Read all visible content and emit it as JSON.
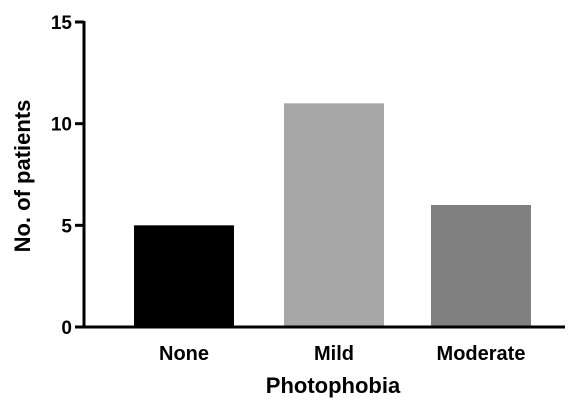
{
  "chart_data": {
    "type": "bar",
    "categories": [
      "None",
      "Mild",
      "Moderate"
    ],
    "values": [
      5,
      11,
      6
    ],
    "colors": [
      "#000000",
      "#a6a6a6",
      "#808080"
    ],
    "title": "",
    "xlabel": "Photophobia",
    "ylabel": "No. of patients",
    "ylim": [
      0,
      15
    ],
    "yticks": [
      0,
      5,
      10,
      15
    ],
    "grid": false,
    "legend": "none"
  }
}
